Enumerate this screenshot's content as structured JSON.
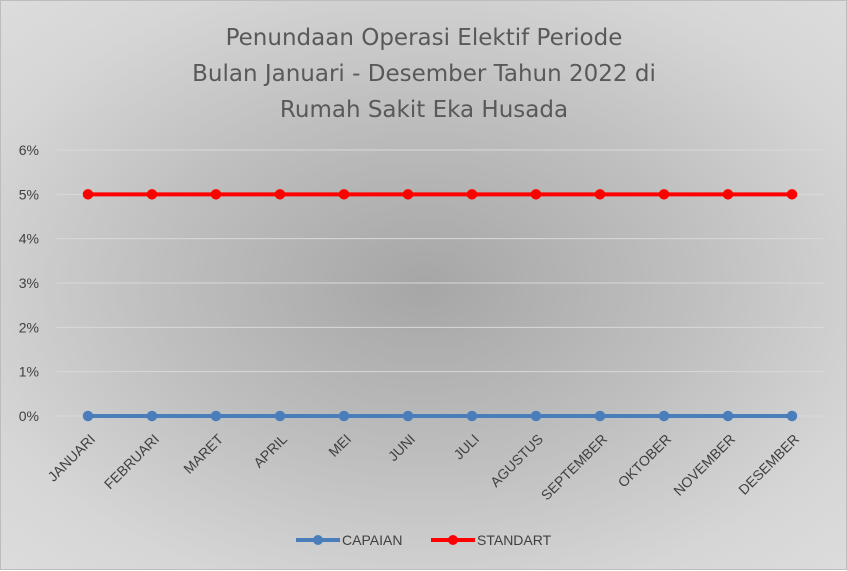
{
  "chart_data": {
    "type": "line",
    "title_lines": [
      "Penundaan Operasi Elektif Periode",
      "Bulan Januari - Desember Tahun 2022 di",
      "Rumah Sakit Eka Husada"
    ],
    "categories": [
      "JANUARI",
      "FEBRUARI",
      "MARET",
      "APRIL",
      "MEI",
      "JUNI",
      "JULI",
      "AGUSTUS",
      "SEPTEMBER",
      "OKTOBER",
      "NOVEMBER",
      "DESEMBER"
    ],
    "y_ticks": [
      "0%",
      "1%",
      "2%",
      "3%",
      "4%",
      "5%",
      "6%"
    ],
    "ylim": [
      0,
      6
    ],
    "y_unit": "%",
    "grid": true,
    "legend_position": "bottom",
    "series": [
      {
        "name": "CAPAIAN",
        "color": "#4a7ebb",
        "values": [
          0,
          0,
          0,
          0,
          0,
          0,
          0,
          0,
          0,
          0,
          0,
          0
        ]
      },
      {
        "name": "STANDART",
        "color": "#ff0000",
        "values": [
          5,
          5,
          5,
          5,
          5,
          5,
          5,
          5,
          5,
          5,
          5,
          5
        ]
      }
    ]
  }
}
